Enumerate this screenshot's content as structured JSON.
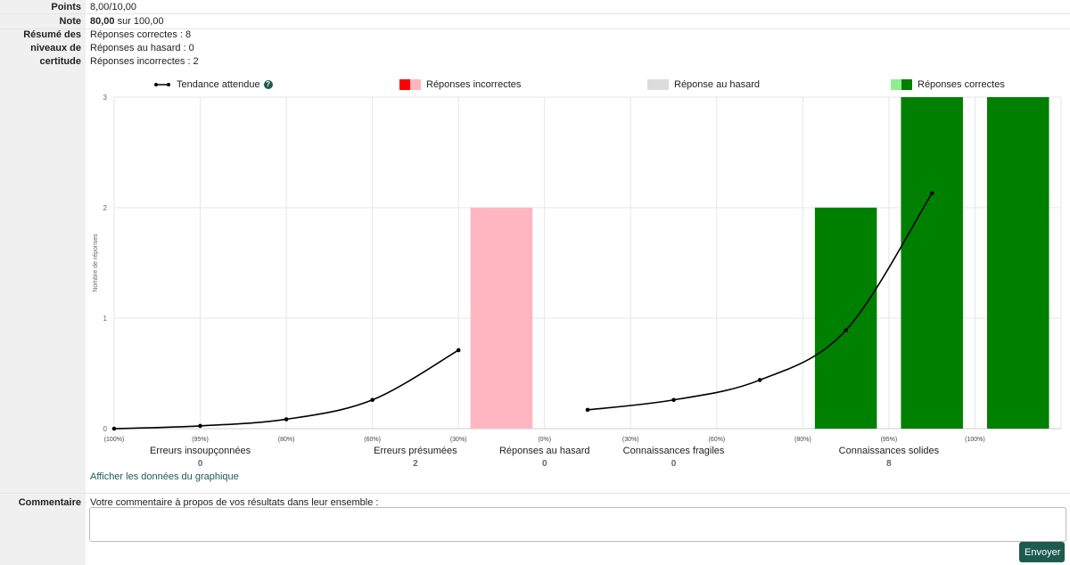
{
  "summary": {
    "points_label": "Points",
    "points_value": "8,00/10,00",
    "note_label": "Note",
    "note_value_bold": "80,00",
    "note_value_rest": " sur 100,00",
    "certainty_label_1": "Résumé des",
    "certainty_label_2": "niveaux de",
    "certainty_label_3": "certitude",
    "certainty_lines": [
      "Réponses correctes : 8",
      "Réponses au hasard : 0",
      "Réponses incorrectes : 2"
    ]
  },
  "legend": {
    "trend": "Tendance attendue",
    "help": "?",
    "incorrect": "Réponses incorrectes",
    "random": "Réponse au hasard",
    "correct": "Réponses correctes"
  },
  "colors": {
    "incorrect_dark": "#ff0000",
    "incorrect_light": "#ffb6c1",
    "random": "#dcdcdc",
    "correct_light": "#90ee90",
    "correct_dark": "#008000",
    "accent": "#1e5b4f"
  },
  "chart_data": {
    "type": "bar",
    "ylabel": "Nombre de réponses",
    "ylim": [
      0,
      3
    ],
    "yticks": [
      0,
      1,
      2,
      3
    ],
    "categories": [
      "(100%)",
      "(95%)",
      "(80%)",
      "(60%)",
      "(30%)",
      "(0%)",
      "(30%)",
      "(60%)",
      "(80%)",
      "(95%)",
      "(100%)"
    ],
    "series": [
      {
        "name": "Réponses incorrectes",
        "values": [
          0,
          0,
          0,
          0,
          2,
          0,
          0,
          0,
          0,
          0,
          0
        ]
      },
      {
        "name": "Réponse au hasard",
        "values": [
          0,
          0,
          0,
          0,
          0,
          0,
          0,
          0,
          0,
          0,
          0
        ]
      },
      {
        "name": "Réponses correctes",
        "values": [
          0,
          0,
          0,
          0,
          0,
          0,
          0,
          0,
          2,
          3,
          3
        ]
      }
    ],
    "trend": {
      "name": "Tendance attendue",
      "segments": [
        {
          "indices": [
            0,
            1,
            2,
            3,
            4
          ],
          "values": [
            0.0,
            0.025,
            0.085,
            0.26,
            0.71
          ]
        },
        {
          "indices": [
            6,
            7,
            8,
            9,
            10
          ],
          "values": [
            0.17,
            0.26,
            0.44,
            0.89,
            2.13
          ]
        }
      ]
    },
    "groups": [
      {
        "label": "Erreurs insoupçonnées",
        "count": "0",
        "center": 1
      },
      {
        "label": "Erreurs présumées",
        "count": "2",
        "center": 3.5
      },
      {
        "label": "Réponses au hasard",
        "count": "0",
        "center": 5
      },
      {
        "label": "Connaissances fragiles",
        "count": "0",
        "center": 6.5
      },
      {
        "label": "Connaissances solides",
        "count": "8",
        "center": 9
      }
    ]
  },
  "chart_link": "Afficher les données du graphique",
  "comment": {
    "label": "Commentaire",
    "prompt": "Votre commentaire à propos de vos résultats dans leur ensemble :",
    "value": "",
    "submit": "Envoyer"
  }
}
